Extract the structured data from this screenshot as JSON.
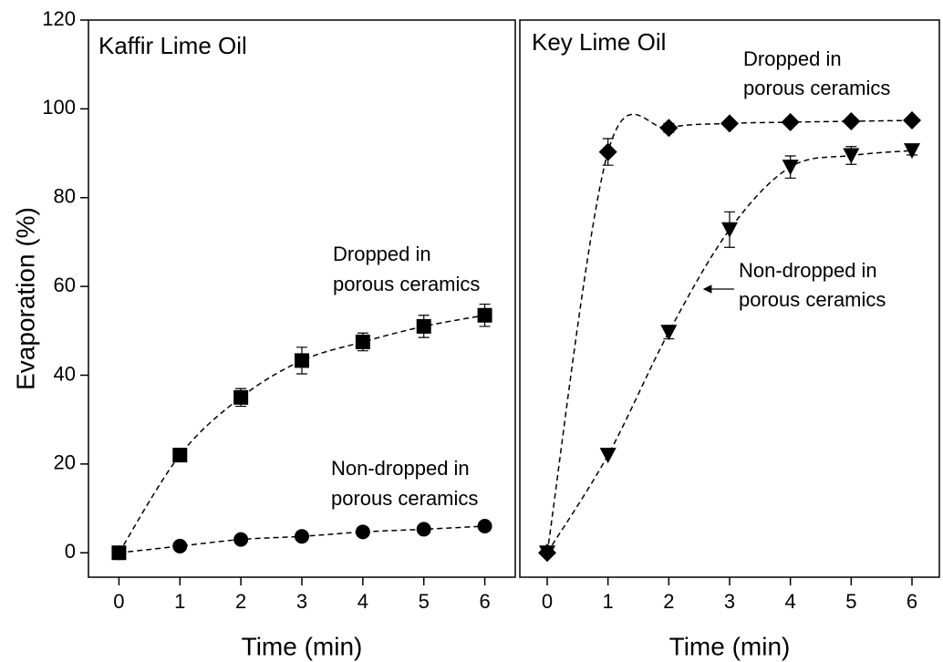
{
  "chart_data": [
    {
      "type": "scatter",
      "title": "Kaffir Lime Oil",
      "x_label": "Time (min)",
      "y_label": "Evaporation (%)",
      "x": [
        0,
        1,
        2,
        3,
        4,
        5,
        6
      ],
      "xlim": [
        -0.5,
        6.5
      ],
      "xticks": [
        0,
        1,
        2,
        3,
        4,
        5,
        6
      ],
      "ylim": [
        -5.5,
        120
      ],
      "yticks": [
        0,
        20,
        40,
        60,
        80,
        100,
        120
      ],
      "series": [
        {
          "name": "Dropped in porous ceramics",
          "color": "#000000",
          "marker": "square",
          "values": [
            0,
            22,
            35,
            43.3,
            47.5,
            51,
            53.5
          ],
          "errors": [
            0.5,
            1.5,
            2,
            3,
            2,
            2.5,
            2.5
          ]
        },
        {
          "name": "Non-dropped in porous ceramics",
          "color": "#000000",
          "marker": "circle",
          "values": [
            0,
            1.5,
            3,
            3.7,
            4.7,
            5.3,
            6
          ],
          "errors": [
            0,
            0,
            0,
            0,
            0,
            0,
            0
          ]
        }
      ],
      "annotations": [
        [
          "Dropped in",
          "porous ceramics"
        ],
        [
          "Non-dropped in",
          "porous ceramics"
        ]
      ]
    },
    {
      "type": "scatter",
      "title": "Key Lime Oil",
      "x_label": "Time (min)",
      "x": [
        0,
        1,
        2,
        3,
        4,
        5,
        6
      ],
      "xlim": [
        -0.45,
        6.45
      ],
      "xticks": [
        0,
        1,
        2,
        3,
        4,
        5,
        6
      ],
      "ylim": [
        -5.5,
        120
      ],
      "series": [
        {
          "name": "Dropped in porous ceramics",
          "color": "#000000",
          "marker": "diamond",
          "values": [
            0,
            90.3,
            95.7,
            96.7,
            97,
            97.2,
            97.4
          ],
          "errors": [
            0,
            3,
            1,
            0.5,
            0.5,
            0.5,
            0.5
          ]
        },
        {
          "name": "Non-dropped in porous ceramics",
          "color": "#000000",
          "marker": "triangle_down",
          "values": [
            0,
            22,
            49.7,
            72.8,
            86.9,
            89.5,
            90.6
          ],
          "errors": [
            0,
            0,
            1.5,
            4,
            2.5,
            2,
            1
          ]
        }
      ],
      "annotations": [
        [
          "Dropped in",
          "porous ceramics"
        ],
        [
          "Non-dropped in",
          "porous ceramics"
        ]
      ]
    }
  ]
}
